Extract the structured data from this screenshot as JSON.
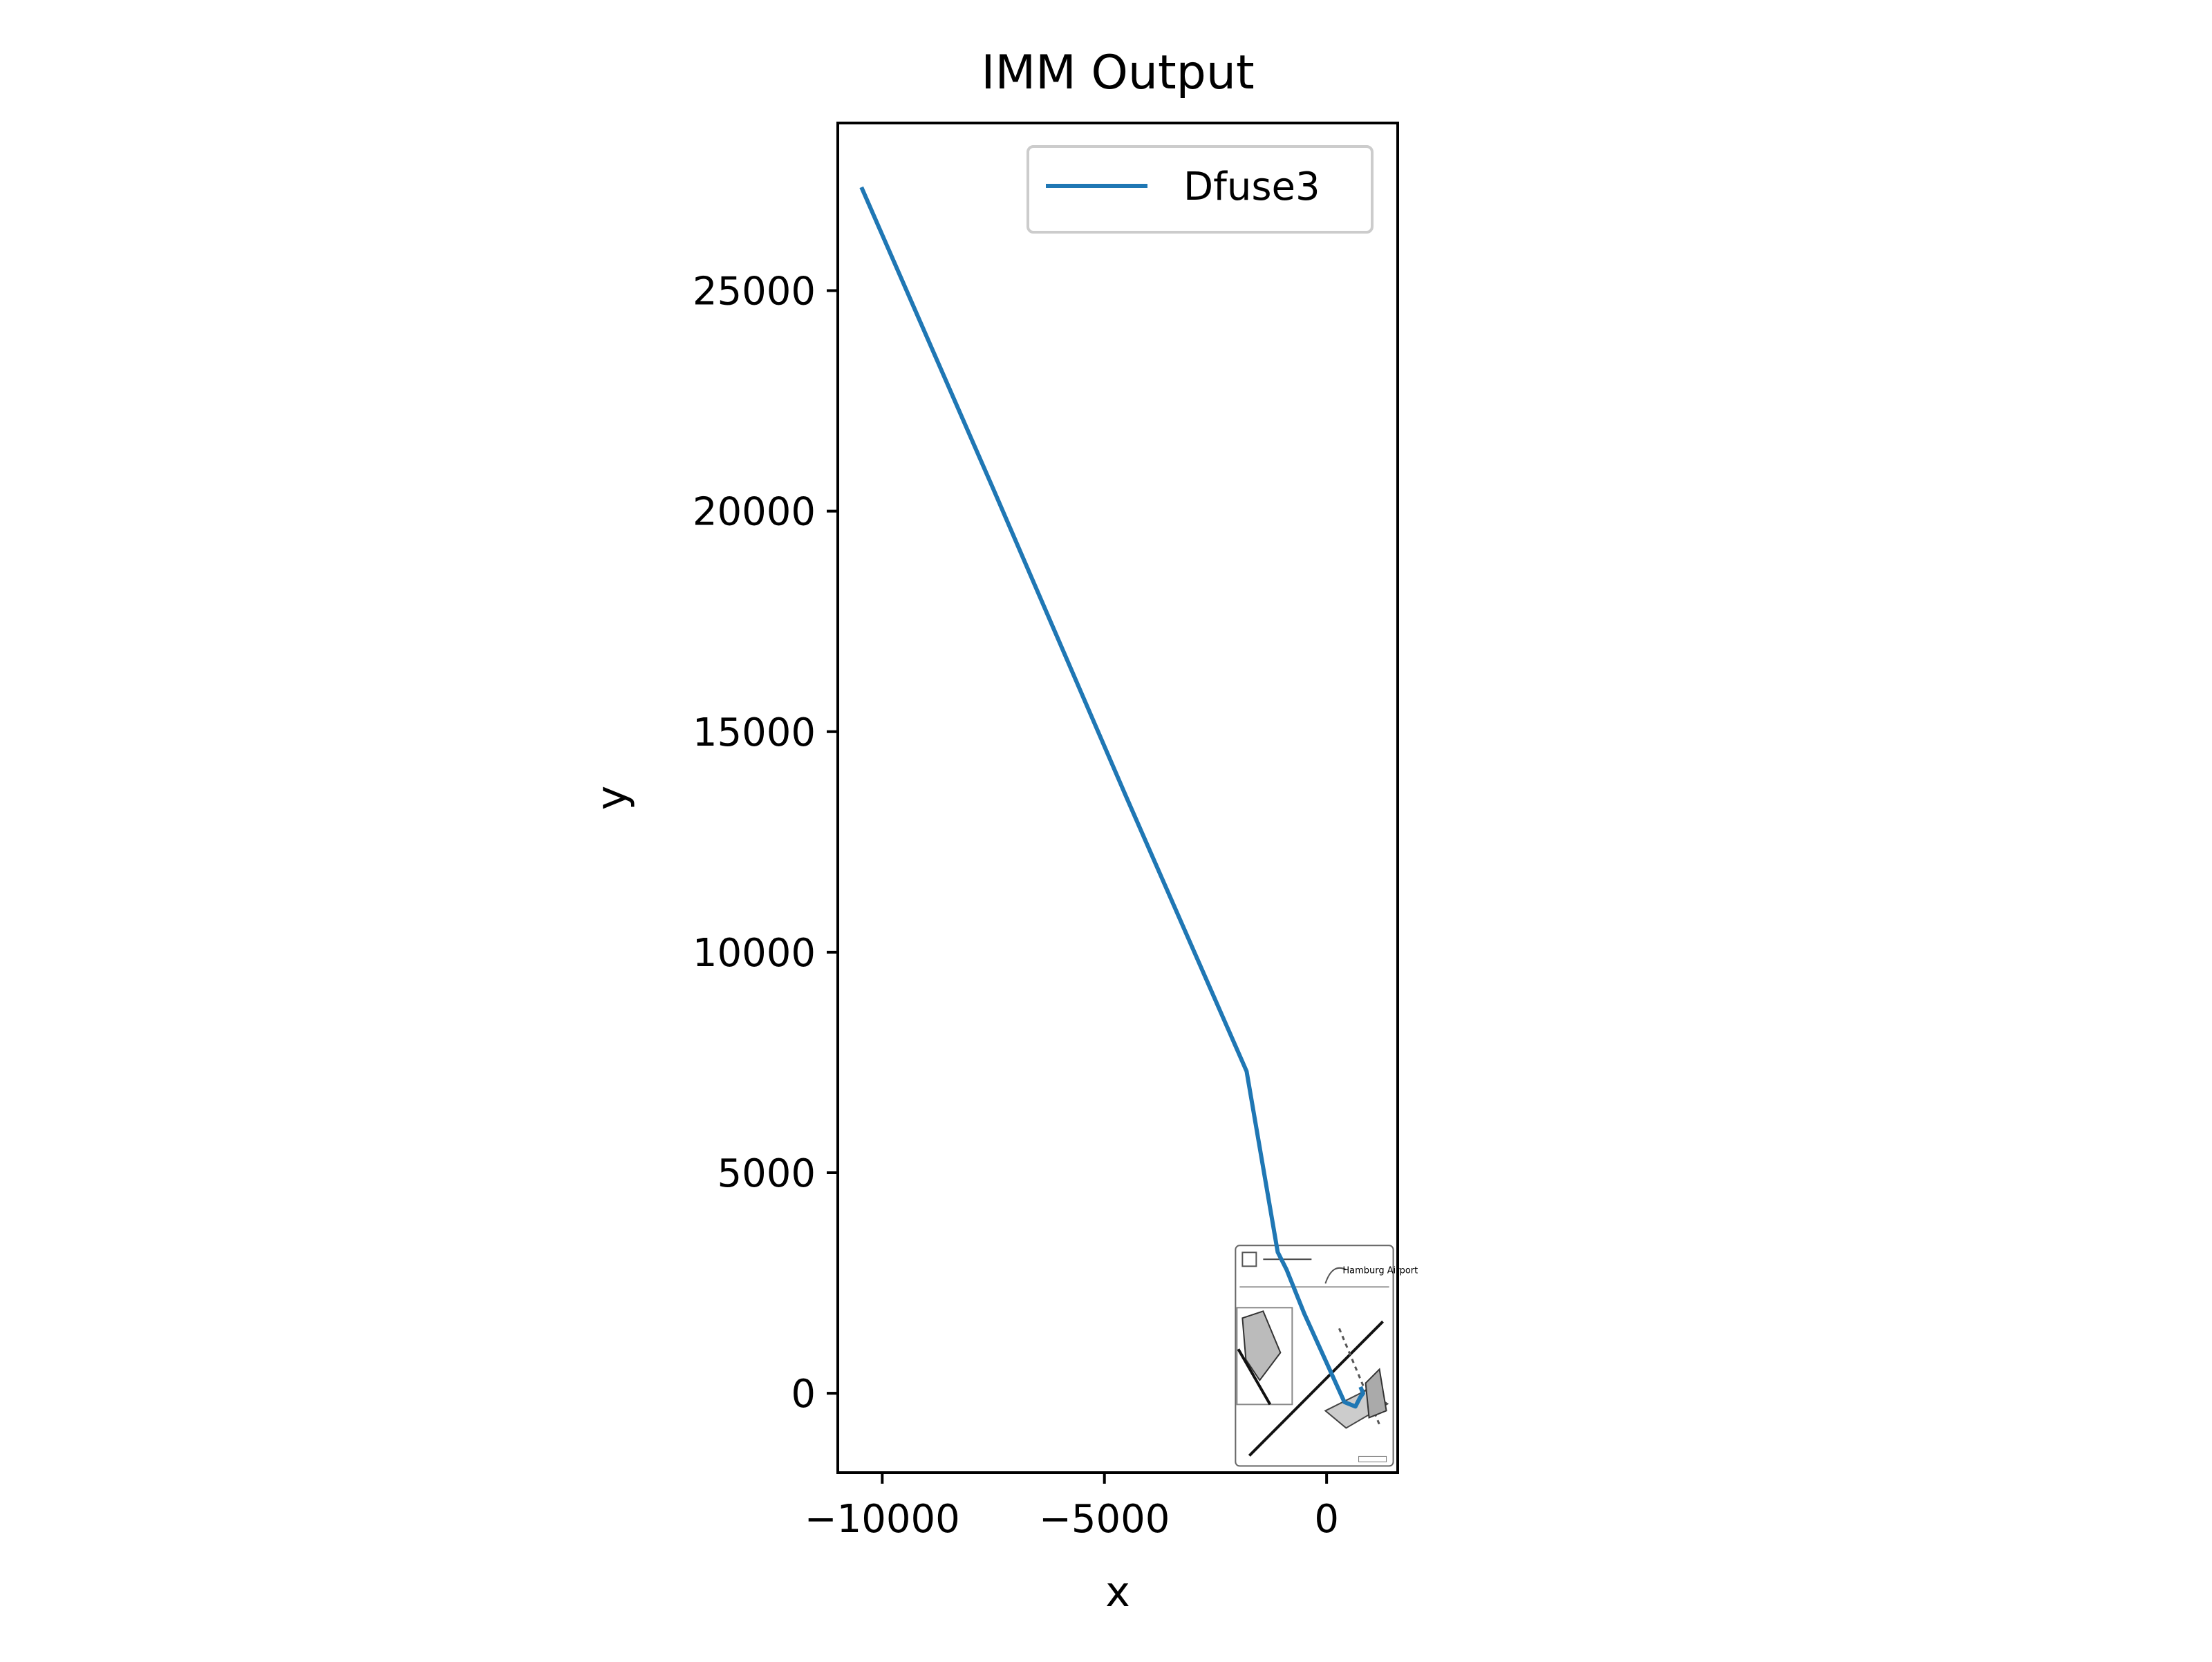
{
  "chart_data": {
    "type": "line",
    "title": "IMM Output",
    "xlabel": "x",
    "ylabel": "y",
    "xlim": [
      -11000,
      1600
    ],
    "ylim": [
      -1800,
      28800
    ],
    "x_ticks": [
      -10000,
      -5000,
      0
    ],
    "x_tick_labels": [
      "−10000",
      "−5000",
      "0"
    ],
    "y_ticks": [
      0,
      5000,
      10000,
      15000,
      20000,
      25000
    ],
    "y_tick_labels": [
      "0",
      "5000",
      "10000",
      "15000",
      "20000",
      "25000"
    ],
    "grid": false,
    "legend": {
      "position": "upper right",
      "entries": [
        "Dfuse3"
      ]
    },
    "series": [
      {
        "name": "Dfuse3",
        "color": "#1f77b4",
        "x": [
          -10450,
          -7500,
          -4500,
          -1800,
          -1100,
          -900,
          -500,
          400,
          650,
          750,
          820,
          780
        ],
        "y": [
          27300,
          20500,
          13500,
          7300,
          3200,
          2800,
          1800,
          -200,
          -300,
          -100,
          0,
          100
        ]
      }
    ],
    "inset_image": {
      "description_icon": "airport-map-image",
      "caption": "Hamburg Airport",
      "extent_x": [
        -2050,
        1500
      ],
      "extent_y": [
        -1650,
        3350
      ]
    }
  }
}
